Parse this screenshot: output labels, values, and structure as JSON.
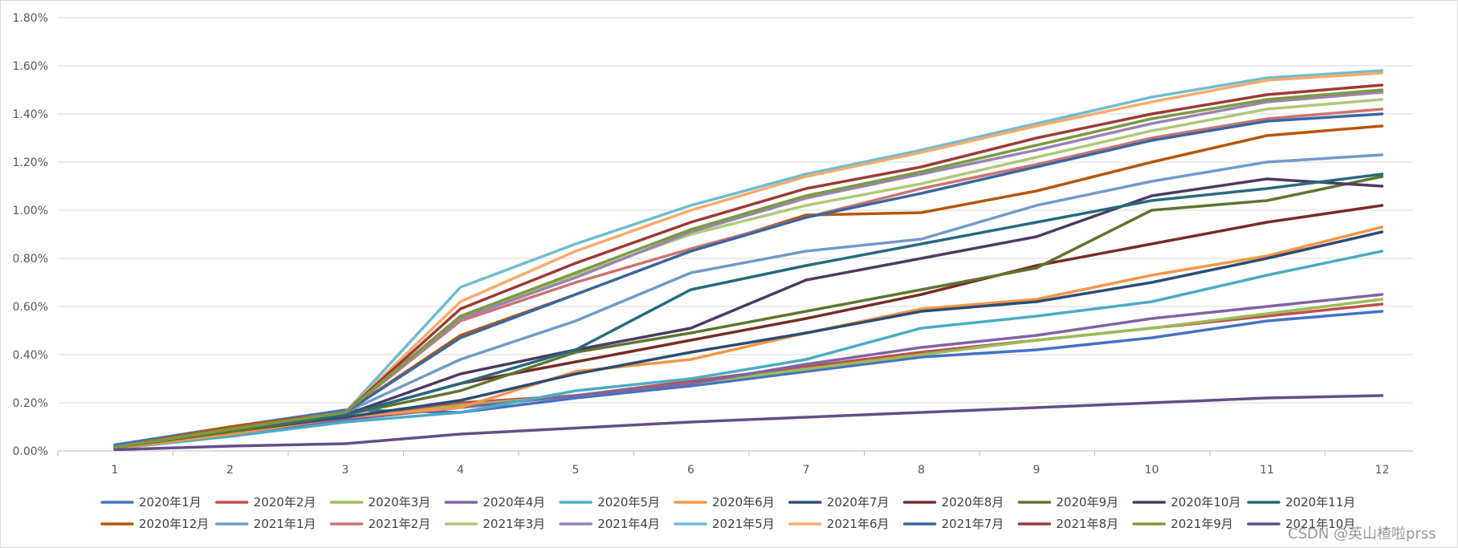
{
  "chart_data": {
    "type": "line",
    "title": "",
    "xlabel": "",
    "ylabel": "",
    "x": [
      1,
      2,
      3,
      4,
      5,
      6,
      7,
      8,
      9,
      10,
      11,
      12
    ],
    "ylim": [
      0,
      1.8
    ],
    "y_ticks": [
      "0.00%",
      "0.20%",
      "0.40%",
      "0.60%",
      "0.80%",
      "1.00%",
      "1.20%",
      "1.40%",
      "1.60%",
      "1.80%"
    ],
    "y_unit": "%",
    "grid": true,
    "legend_position": "bottom",
    "series": [
      {
        "name": "2020年1月",
        "color": "#4472c4",
        "values": [
          0.025,
          0.1,
          0.17,
          0.16,
          0.22,
          0.27,
          0.33,
          0.39,
          0.42,
          0.47,
          0.54,
          0.58
        ]
      },
      {
        "name": "2020年2月",
        "color": "#c0504d",
        "values": [
          0.015,
          0.08,
          0.14,
          0.2,
          0.23,
          0.29,
          0.35,
          0.41,
          0.46,
          0.51,
          0.56,
          0.61
        ]
      },
      {
        "name": "2020年3月",
        "color": "#9bbb59",
        "values": [
          0.01,
          0.07,
          0.13,
          0.19,
          0.23,
          0.28,
          0.34,
          0.4,
          0.46,
          0.51,
          0.57,
          0.63
        ]
      },
      {
        "name": "2020年4月",
        "color": "#8064a2",
        "values": [
          0.01,
          0.07,
          0.13,
          0.18,
          0.23,
          0.28,
          0.36,
          0.43,
          0.48,
          0.55,
          0.6,
          0.65
        ]
      },
      {
        "name": "2020年5月",
        "color": "#4bacc6",
        "values": [
          0.01,
          0.06,
          0.12,
          0.16,
          0.25,
          0.3,
          0.38,
          0.51,
          0.56,
          0.62,
          0.73,
          0.83
        ]
      },
      {
        "name": "2020年6月",
        "color": "#f79646",
        "values": [
          0.01,
          0.07,
          0.14,
          0.18,
          0.33,
          0.38,
          0.49,
          0.59,
          0.63,
          0.73,
          0.81,
          0.93
        ]
      },
      {
        "name": "2020年7月",
        "color": "#2c4d75",
        "values": [
          0.015,
          0.08,
          0.14,
          0.21,
          0.32,
          0.41,
          0.49,
          0.58,
          0.62,
          0.7,
          0.8,
          0.91
        ]
      },
      {
        "name": "2020年8月",
        "color": "#772c2a",
        "values": [
          0.015,
          0.08,
          0.15,
          0.28,
          0.37,
          0.46,
          0.55,
          0.65,
          0.77,
          0.86,
          0.95,
          1.02
        ]
      },
      {
        "name": "2020年9月",
        "color": "#5f7530",
        "values": [
          0.015,
          0.08,
          0.15,
          0.25,
          0.41,
          0.49,
          0.58,
          0.67,
          0.76,
          1.0,
          1.04,
          1.14
        ]
      },
      {
        "name": "2020年10月",
        "color": "#4d3b62",
        "values": [
          0.015,
          0.09,
          0.15,
          0.32,
          0.42,
          0.51,
          0.71,
          0.8,
          0.89,
          1.06,
          1.13,
          1.1
        ]
      },
      {
        "name": "2020年11月",
        "color": "#276a7c",
        "values": [
          0.015,
          0.09,
          0.15,
          0.28,
          0.42,
          0.67,
          0.77,
          0.86,
          0.95,
          1.04,
          1.09,
          1.15
        ]
      },
      {
        "name": "2020年12月",
        "color": "#b65708",
        "values": [
          0.015,
          0.1,
          0.16,
          0.48,
          0.65,
          0.83,
          0.98,
          0.99,
          1.08,
          1.2,
          1.31,
          1.35
        ]
      },
      {
        "name": "2021年1月",
        "color": "#729aca",
        "values": [
          0.015,
          0.09,
          0.16,
          0.38,
          0.54,
          0.74,
          0.83,
          0.88,
          1.02,
          1.12,
          1.2,
          1.23
        ]
      },
      {
        "name": "2021年2月",
        "color": "#cd7371",
        "values": [
          0.015,
          0.09,
          0.16,
          0.54,
          0.7,
          0.84,
          0.97,
          1.09,
          1.19,
          1.3,
          1.38,
          1.42
        ]
      },
      {
        "name": "2021年3月",
        "color": "#afc97a",
        "values": [
          0.015,
          0.09,
          0.16,
          0.55,
          0.73,
          0.9,
          1.02,
          1.11,
          1.22,
          1.33,
          1.42,
          1.46
        ]
      },
      {
        "name": "2021年4月",
        "color": "#9983b5",
        "values": [
          0.015,
          0.09,
          0.16,
          0.55,
          0.72,
          0.91,
          1.05,
          1.15,
          1.25,
          1.36,
          1.45,
          1.49
        ]
      },
      {
        "name": "2021年5月",
        "color": "#6fbdd1",
        "values": [
          0.015,
          0.09,
          0.16,
          0.68,
          0.86,
          1.02,
          1.15,
          1.25,
          1.36,
          1.47,
          1.55,
          1.58
        ]
      },
      {
        "name": "2021年6月",
        "color": "#f9ab6b",
        "values": [
          0.015,
          0.09,
          0.16,
          0.62,
          0.83,
          1.0,
          1.14,
          1.24,
          1.35,
          1.45,
          1.54,
          1.57
        ]
      },
      {
        "name": "2021年7月",
        "color": "#3a67a1",
        "values": [
          0.015,
          0.09,
          0.16,
          0.47,
          0.65,
          0.83,
          0.97,
          1.07,
          1.18,
          1.29,
          1.37,
          1.4
        ]
      },
      {
        "name": "2021年8月",
        "color": "#9c3a38",
        "values": [
          0.015,
          0.09,
          0.16,
          0.59,
          0.78,
          0.95,
          1.09,
          1.18,
          1.3,
          1.4,
          1.48,
          1.52
        ]
      },
      {
        "name": "2021年9月",
        "color": "#7d9a3e",
        "values": [
          0.015,
          0.09,
          0.16,
          0.56,
          0.74,
          0.92,
          1.06,
          1.16,
          1.27,
          1.38,
          1.46,
          1.5
        ]
      },
      {
        "name": "2021年10月",
        "color": "#664e85",
        "values": [
          0.005,
          0.02,
          0.03,
          0.07,
          0.095,
          0.12,
          0.14,
          0.16,
          0.18,
          0.2,
          0.22,
          0.23
        ]
      }
    ]
  },
  "watermark": "CSDN @英山楂啦prss"
}
